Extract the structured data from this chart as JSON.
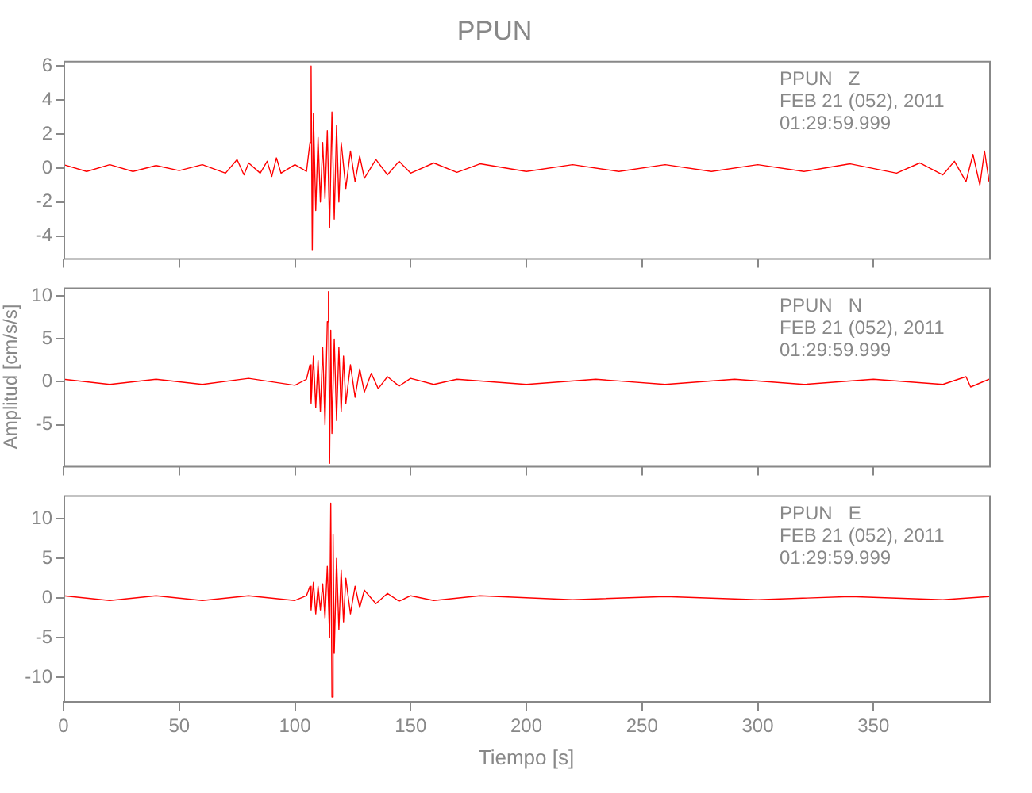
{
  "chart_data": [
    {
      "type": "line",
      "title": "PPUN",
      "annotations": [
        "PPUN   Z",
        "FEB 21 (052), 2011",
        "01:29:59.999"
      ],
      "xlim": [
        0,
        400
      ],
      "xticks": [
        0,
        50,
        100,
        150,
        200,
        250,
        300,
        350
      ],
      "ylim": [
        -5.3,
        6.3
      ],
      "yticks": [
        -4,
        -2,
        0,
        2,
        4,
        6
      ],
      "tick_labels": "y",
      "grid": false,
      "legend": false,
      "marker": "none",
      "series": [
        {
          "color": "#ff0000",
          "x": [
            0,
            10,
            20,
            30,
            40,
            50,
            60,
            70,
            75,
            78,
            80,
            85,
            88,
            90,
            92,
            94,
            100,
            105,
            106.5,
            107,
            107.5,
            108,
            109,
            110,
            111,
            112,
            113,
            114,
            115,
            116,
            117,
            118,
            119,
            120,
            122,
            124,
            126,
            128,
            130,
            135,
            140,
            145,
            150,
            160,
            170,
            180,
            200,
            220,
            240,
            260,
            280,
            300,
            320,
            340,
            360,
            370,
            380,
            385,
            390,
            393,
            396,
            398,
            400
          ],
          "values": [
            0.2,
            -0.2,
            0.2,
            -0.2,
            0.15,
            -0.15,
            0.2,
            -0.3,
            0.5,
            -0.4,
            0.3,
            -0.3,
            0.4,
            -0.5,
            0.6,
            -0.3,
            0.2,
            -0.2,
            1.5,
            6,
            -4.8,
            3.2,
            -2.5,
            1.8,
            -2,
            1.5,
            -1.8,
            2.2,
            -3.5,
            3.3,
            -3,
            2.5,
            -2,
            1.5,
            -1.2,
            1,
            -0.8,
            0.7,
            -0.6,
            0.5,
            -0.4,
            0.4,
            -0.3,
            0.3,
            -0.25,
            0.25,
            -0.2,
            0.2,
            -0.2,
            0.2,
            -0.2,
            0.2,
            -0.2,
            0.25,
            -0.3,
            0.3,
            -0.4,
            0.4,
            -0.8,
            0.8,
            -1,
            1,
            -0.8
          ]
        }
      ]
    },
    {
      "type": "line",
      "ylabel": "Amplitud [cm/s/s]",
      "annotations": [
        "PPUN   N",
        "FEB 21 (052), 2011",
        "01:29:59.999"
      ],
      "xlim": [
        0,
        400
      ],
      "xticks": [
        0,
        50,
        100,
        150,
        200,
        250,
        300,
        350
      ],
      "ylim": [
        -9.8,
        11
      ],
      "yticks": [
        -5,
        0,
        5,
        10
      ],
      "tick_labels": "y",
      "grid": false,
      "legend": false,
      "marker": "none",
      "series": [
        {
          "color": "#ff0000",
          "x": [
            0,
            20,
            40,
            60,
            80,
            100,
            105,
            106.5,
            107,
            108,
            109,
            110,
            111,
            112,
            113,
            114,
            114.5,
            115,
            115.5,
            116,
            117,
            118,
            119,
            120,
            121,
            122,
            124,
            126,
            128,
            130,
            133,
            136,
            140,
            145,
            150,
            160,
            170,
            200,
            230,
            260,
            290,
            320,
            350,
            380,
            390,
            392,
            400
          ],
          "values": [
            0.3,
            -0.3,
            0.3,
            -0.3,
            0.4,
            -0.4,
            0.3,
            2,
            -2.5,
            3,
            -3,
            2.5,
            -3.5,
            4,
            -5,
            7,
            10.5,
            -9.5,
            6,
            -6,
            5,
            -4.5,
            4,
            -3.5,
            3,
            -2.5,
            2,
            -1.8,
            1.5,
            -1.2,
            1,
            -0.8,
            0.6,
            -0.5,
            0.4,
            -0.3,
            0.3,
            -0.3,
            0.3,
            -0.3,
            0.3,
            -0.3,
            0.3,
            -0.3,
            0.6,
            -0.6,
            0.3
          ]
        }
      ]
    },
    {
      "type": "line",
      "xlabel": "Tiempo [s]",
      "annotations": [
        "PPUN   E",
        "FEB 21 (052), 2011",
        "01:29:59.999"
      ],
      "xlim": [
        0,
        400
      ],
      "xticks": [
        0,
        50,
        100,
        150,
        200,
        250,
        300,
        350
      ],
      "ylim": [
        -13,
        13
      ],
      "yticks": [
        -10,
        -5,
        0,
        5,
        10
      ],
      "grid": false,
      "legend": false,
      "marker": "none",
      "series": [
        {
          "color": "#ff0000",
          "x": [
            0,
            20,
            40,
            60,
            80,
            100,
            105,
            106.5,
            107,
            108,
            109,
            110,
            111,
            112,
            113,
            114,
            115,
            115.5,
            116,
            116.5,
            117,
            118,
            119,
            120,
            121,
            122,
            124,
            126,
            128,
            130,
            135,
            140,
            145,
            150,
            160,
            180,
            220,
            260,
            300,
            340,
            380,
            400
          ],
          "values": [
            0.3,
            -0.3,
            0.3,
            -0.3,
            0.3,
            -0.3,
            0.3,
            1.5,
            -1.5,
            2,
            -2,
            1.5,
            -1.5,
            1.8,
            -2.5,
            4,
            -5,
            12,
            -12.5,
            8,
            -7,
            5,
            -4,
            3.5,
            -3,
            2.5,
            -2,
            1.5,
            -1.2,
            1,
            -0.7,
            0.6,
            -0.4,
            0.3,
            -0.3,
            0.3,
            -0.2,
            0.2,
            -0.2,
            0.2,
            -0.2,
            0.2
          ]
        }
      ]
    }
  ]
}
